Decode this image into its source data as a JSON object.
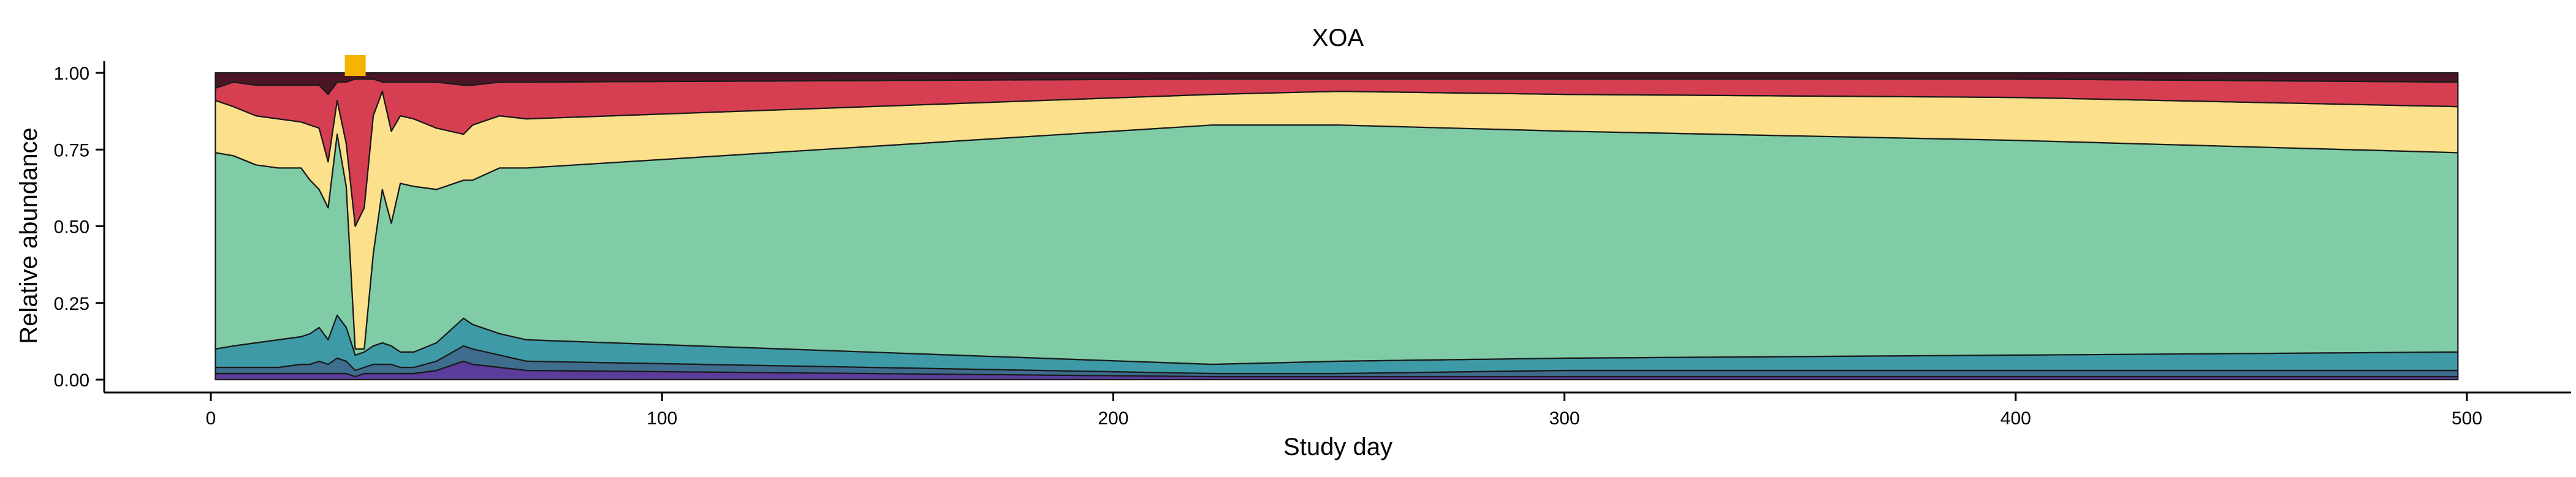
{
  "chart_data": {
    "type": "area",
    "stacked": true,
    "normalized": true,
    "title": "XOA",
    "xlabel": "Study day",
    "ylabel": "Relative abundance",
    "xlim": [
      -25,
      525
    ],
    "ylim": [
      -0.04,
      1.04
    ],
    "x_ticks": [
      0,
      100,
      200,
      300,
      400,
      500
    ],
    "x_tick_labels": [
      "0",
      "100",
      "200",
      "300",
      "400",
      "500"
    ],
    "y_ticks": [
      0.0,
      0.25,
      0.5,
      0.75,
      1.0
    ],
    "y_tick_labels": [
      "0.00",
      "0.25",
      "0.50",
      "0.75",
      "1.00"
    ],
    "grid": false,
    "x": [
      1,
      5,
      10,
      15,
      20,
      22,
      24,
      26,
      28,
      30,
      32,
      34,
      36,
      38,
      40,
      42,
      45,
      50,
      56,
      58,
      64,
      70,
      222,
      250,
      300,
      400,
      498
    ],
    "series": [
      {
        "color": "#5b3c9a",
        "values": [
          0.02,
          0.02,
          0.02,
          0.02,
          0.02,
          0.02,
          0.02,
          0.02,
          0.02,
          0.02,
          0.01,
          0.02,
          0.02,
          0.02,
          0.02,
          0.02,
          0.02,
          0.03,
          0.06,
          0.05,
          0.04,
          0.03,
          0.01,
          0.01,
          0.01,
          0.01,
          0.01
        ]
      },
      {
        "color": "#3e6d8e",
        "values": [
          0.02,
          0.02,
          0.02,
          0.02,
          0.03,
          0.03,
          0.04,
          0.03,
          0.05,
          0.04,
          0.02,
          0.02,
          0.03,
          0.03,
          0.03,
          0.02,
          0.02,
          0.03,
          0.05,
          0.05,
          0.04,
          0.03,
          0.01,
          0.01,
          0.02,
          0.02,
          0.02
        ]
      },
      {
        "color": "#3e9aa6",
        "values": [
          0.06,
          0.07,
          0.08,
          0.09,
          0.09,
          0.1,
          0.11,
          0.08,
          0.14,
          0.11,
          0.05,
          0.05,
          0.06,
          0.07,
          0.06,
          0.05,
          0.05,
          0.06,
          0.09,
          0.08,
          0.07,
          0.07,
          0.03,
          0.04,
          0.04,
          0.05,
          0.06
        ]
      },
      {
        "color": "#7fcca6",
        "values": [
          0.64,
          0.62,
          0.58,
          0.56,
          0.55,
          0.5,
          0.45,
          0.43,
          0.59,
          0.46,
          0.02,
          0.01,
          0.3,
          0.5,
          0.4,
          0.55,
          0.54,
          0.5,
          0.45,
          0.47,
          0.54,
          0.56,
          0.78,
          0.77,
          0.74,
          0.7,
          0.65
        ]
      },
      {
        "color": "#fde08b",
        "values": [
          0.17,
          0.16,
          0.16,
          0.16,
          0.15,
          0.18,
          0.2,
          0.15,
          0.11,
          0.14,
          0.4,
          0.46,
          0.45,
          0.32,
          0.3,
          0.22,
          0.22,
          0.2,
          0.15,
          0.18,
          0.17,
          0.16,
          0.1,
          0.11,
          0.12,
          0.14,
          0.15
        ]
      },
      {
        "color": "#d63f52",
        "values": [
          0.04,
          0.08,
          0.1,
          0.11,
          0.12,
          0.13,
          0.14,
          0.22,
          0.06,
          0.2,
          0.48,
          0.42,
          0.12,
          0.03,
          0.16,
          0.11,
          0.12,
          0.15,
          0.16,
          0.13,
          0.11,
          0.12,
          0.05,
          0.04,
          0.05,
          0.06,
          0.08
        ]
      },
      {
        "color": "#4a1524",
        "values": [
          0.05,
          0.03,
          0.04,
          0.04,
          0.04,
          0.04,
          0.04,
          0.07,
          0.03,
          0.03,
          0.02,
          0.02,
          0.02,
          0.03,
          0.03,
          0.03,
          0.03,
          0.03,
          0.04,
          0.04,
          0.03,
          0.03,
          0.02,
          0.02,
          0.02,
          0.02,
          0.03
        ]
      }
    ],
    "annotation_marker": {
      "type": "square",
      "color": "#f5b400",
      "x": 32,
      "y": 1.0
    }
  }
}
